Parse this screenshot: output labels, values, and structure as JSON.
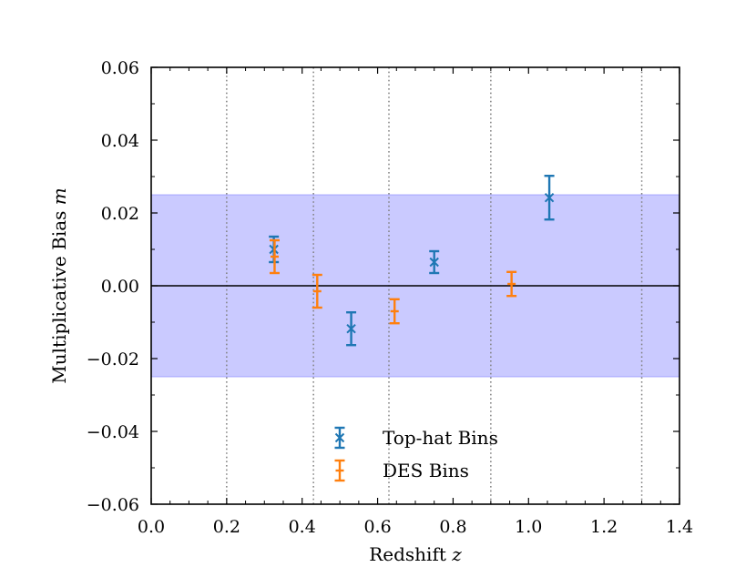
{
  "chart_data": {
    "type": "scatter",
    "title": "",
    "xlabel": "Redshift",
    "xlabel_var": "z",
    "ylabel": "Multiplicative Bias",
    "ylabel_var": "m",
    "xlim": [
      0.0,
      1.4
    ],
    "ylim": [
      -0.06,
      0.06
    ],
    "x_ticks": [
      "0.0",
      "0.2",
      "0.4",
      "0.6",
      "0.8",
      "1.0",
      "1.2",
      "1.4"
    ],
    "x_tick_values": [
      0.0,
      0.2,
      0.4,
      0.6,
      0.8,
      1.0,
      1.2,
      1.4
    ],
    "y_ticks": [
      "−0.06",
      "−0.04",
      "−0.02",
      "0.00",
      "0.02",
      "0.04",
      "0.06"
    ],
    "y_tick_values": [
      -0.06,
      -0.04,
      -0.02,
      0.0,
      0.02,
      0.04,
      0.06
    ],
    "reference_line_y": 0.0,
    "requirement_band": [
      -0.025,
      0.025
    ],
    "vertical_dotted_lines_x": [
      0.2,
      0.43,
      0.63,
      0.9,
      1.3
    ],
    "legend_position": "lower-center",
    "series": [
      {
        "name": "Top-hat Bins",
        "color": "#1f77b4",
        "marker": "x",
        "x": [
          0.325,
          0.53,
          0.75,
          1.055
        ],
        "y": [
          0.01,
          -0.0118,
          0.0065,
          0.0242
        ],
        "yerr": [
          0.0035,
          0.0045,
          0.003,
          0.006
        ]
      },
      {
        "name": "DES Bins",
        "color": "#ff7f0e",
        "marker": "_",
        "x": [
          0.327,
          0.44,
          0.645,
          0.955
        ],
        "y": [
          0.008,
          -0.0015,
          -0.007,
          0.0005
        ],
        "yerr": [
          0.0045,
          0.0045,
          0.0033,
          0.0033
        ]
      }
    ]
  },
  "colors": {
    "band_fill": "#8080ff",
    "band_edge": "#8080ff",
    "axis": "#000000",
    "grid_dotted": "#808080"
  }
}
